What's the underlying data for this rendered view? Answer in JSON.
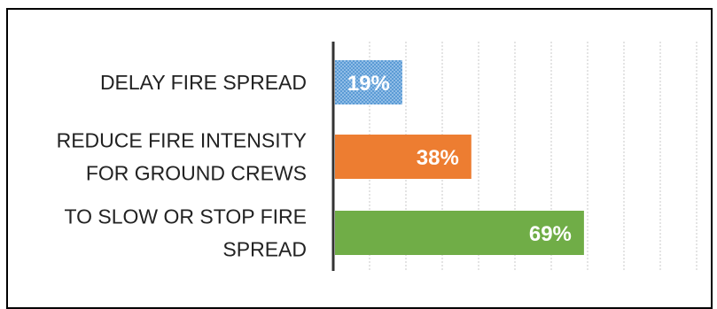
{
  "chart_data": {
    "type": "bar",
    "orientation": "horizontal",
    "categories": [
      "DELAY FIRE SPREAD",
      "REDUCE FIRE INTENSITY FOR GROUND CREWS",
      "TO SLOW OR STOP FIRE SPREAD"
    ],
    "category_lines": [
      [
        "DELAY FIRE SPREAD"
      ],
      [
        "REDUCE FIRE INTENSITY",
        "FOR GROUND CREWS"
      ],
      [
        "TO SLOW OR STOP FIRE",
        "SPREAD"
      ]
    ],
    "values": [
      19,
      38,
      69
    ],
    "data_labels": [
      "19%",
      "38%",
      "69%"
    ],
    "colors": [
      "#5b9bd5",
      "#ed7d31",
      "#70ad47"
    ],
    "patterned": [
      true,
      false,
      false
    ],
    "title": "",
    "xlabel": "",
    "ylabel": "",
    "xlim": [
      0,
      100
    ],
    "grid": true,
    "legend": "none"
  }
}
